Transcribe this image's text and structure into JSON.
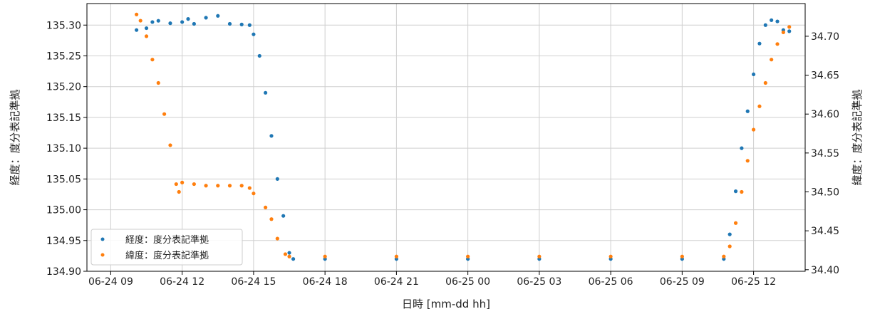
{
  "chart_data": {
    "type": "scatter",
    "xlabel": "日時 [mm-dd hh]",
    "ylabel_left": "経度：度分表記準拠",
    "ylabel_right": "緯度：度分表記準拠",
    "x_ticks": [
      "06-24 09",
      "06-24 12",
      "06-24 15",
      "06-24 18",
      "06-24 21",
      "06-25 00",
      "06-25 03",
      "06-25 06",
      "06-25 09",
      "06-25 12"
    ],
    "x_range": [
      "06-24 08:00",
      "06-25 14:10"
    ],
    "y_left_ticks": [
      "134.90",
      "134.95",
      "135.00",
      "135.05",
      "135.10",
      "135.15",
      "135.20",
      "135.25",
      "135.30"
    ],
    "y_left_range": [
      134.9,
      135.335
    ],
    "y_right_ticks": [
      "34.40",
      "34.45",
      "34.50",
      "34.55",
      "34.60",
      "34.65",
      "34.70"
    ],
    "y_right_range": [
      34.398,
      34.742
    ],
    "grid": true,
    "legend_position": "lower-left",
    "series": [
      {
        "name": "経度：度分表記準拠",
        "axis": "left",
        "color": "#1f77b4",
        "points": [
          [
            "06-24 10:05",
            135.292
          ],
          [
            "06-24 10:30",
            135.295
          ],
          [
            "06-24 10:45",
            135.305
          ],
          [
            "06-24 11:00",
            135.307
          ],
          [
            "06-24 11:30",
            135.303
          ],
          [
            "06-24 12:00",
            135.305
          ],
          [
            "06-24 12:15",
            135.31
          ],
          [
            "06-24 12:30",
            135.302
          ],
          [
            "06-24 13:00",
            135.312
          ],
          [
            "06-24 13:30",
            135.315
          ],
          [
            "06-24 14:00",
            135.302
          ],
          [
            "06-24 14:30",
            135.301
          ],
          [
            "06-24 14:50",
            135.3
          ],
          [
            "06-24 15:00",
            135.285
          ],
          [
            "06-24 15:15",
            135.25
          ],
          [
            "06-24 15:30",
            135.19
          ],
          [
            "06-24 15:45",
            135.12
          ],
          [
            "06-24 16:00",
            135.05
          ],
          [
            "06-24 16:15",
            134.99
          ],
          [
            "06-24 16:30",
            134.93
          ],
          [
            "06-24 16:40",
            134.92
          ],
          [
            "06-24 18:00",
            134.92
          ],
          [
            "06-24 21:00",
            134.92
          ],
          [
            "06-25 00:00",
            134.92
          ],
          [
            "06-25 03:00",
            134.92
          ],
          [
            "06-25 06:00",
            134.92
          ],
          [
            "06-25 09:00",
            134.92
          ],
          [
            "06-25 10:45",
            134.92
          ],
          [
            "06-25 11:00",
            134.96
          ],
          [
            "06-25 11:15",
            135.03
          ],
          [
            "06-25 11:30",
            135.1
          ],
          [
            "06-25 11:45",
            135.16
          ],
          [
            "06-25 12:00",
            135.22
          ],
          [
            "06-25 12:15",
            135.27
          ],
          [
            "06-25 12:30",
            135.3
          ],
          [
            "06-25 12:45",
            135.308
          ],
          [
            "06-25 13:00",
            135.306
          ],
          [
            "06-25 13:15",
            135.292
          ],
          [
            "06-25 13:30",
            135.29
          ]
        ]
      },
      {
        "name": "緯度：度分表記準拠",
        "axis": "right",
        "color": "#ff7f0e",
        "points": [
          [
            "06-24 10:05",
            34.728
          ],
          [
            "06-24 10:15",
            34.72
          ],
          [
            "06-24 10:30",
            34.7
          ],
          [
            "06-24 10:45",
            34.67
          ],
          [
            "06-24 11:00",
            34.64
          ],
          [
            "06-24 11:15",
            34.6
          ],
          [
            "06-24 11:30",
            34.56
          ],
          [
            "06-24 11:45",
            34.51
          ],
          [
            "06-24 11:52",
            34.5
          ],
          [
            "06-24 12:00",
            34.512
          ],
          [
            "06-24 12:30",
            34.51
          ],
          [
            "06-24 13:00",
            34.508
          ],
          [
            "06-24 13:30",
            34.508
          ],
          [
            "06-24 14:00",
            34.508
          ],
          [
            "06-24 14:30",
            34.508
          ],
          [
            "06-24 14:50",
            34.505
          ],
          [
            "06-24 15:00",
            34.498
          ],
          [
            "06-24 15:30",
            34.48
          ],
          [
            "06-24 15:45",
            34.465
          ],
          [
            "06-24 16:00",
            34.44
          ],
          [
            "06-24 16:20",
            34.42
          ],
          [
            "06-24 16:30",
            34.417
          ],
          [
            "06-24 18:00",
            34.417
          ],
          [
            "06-24 21:00",
            34.417
          ],
          [
            "06-25 00:00",
            34.417
          ],
          [
            "06-25 03:00",
            34.417
          ],
          [
            "06-25 06:00",
            34.417
          ],
          [
            "06-25 09:00",
            34.417
          ],
          [
            "06-25 10:45",
            34.417
          ],
          [
            "06-25 11:00",
            34.43
          ],
          [
            "06-25 11:15",
            34.46
          ],
          [
            "06-25 11:30",
            34.5
          ],
          [
            "06-25 11:45",
            34.54
          ],
          [
            "06-25 12:00",
            34.58
          ],
          [
            "06-25 12:15",
            34.61
          ],
          [
            "06-25 12:30",
            34.64
          ],
          [
            "06-25 12:45",
            34.67
          ],
          [
            "06-25 13:00",
            34.69
          ],
          [
            "06-25 13:15",
            34.705
          ],
          [
            "06-25 13:30",
            34.712
          ]
        ]
      }
    ]
  }
}
